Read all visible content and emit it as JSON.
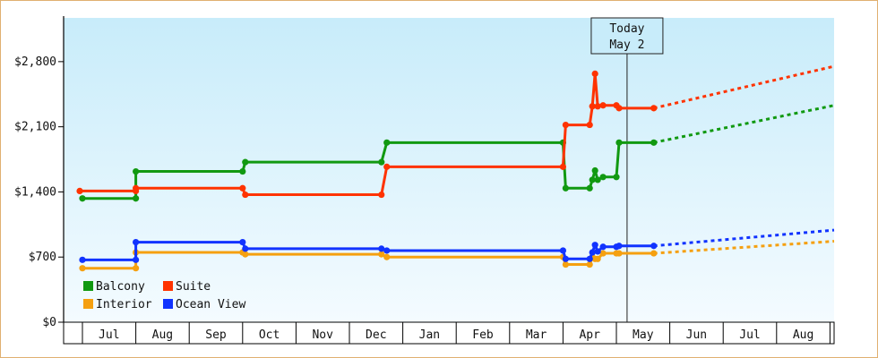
{
  "chart_data": {
    "type": "line",
    "y_tick_labels": [
      "$0",
      "$700",
      "$1,400",
      "$2,100",
      "$2,800"
    ],
    "y_ticks": [
      0,
      700,
      1400,
      2100,
      2800
    ],
    "ylim": [
      0,
      3270
    ],
    "x_month_labels": [
      "Jul",
      "Aug",
      "Sep",
      "Oct",
      "Nov",
      "Dec",
      "Jan",
      "Feb",
      "Mar",
      "Apr",
      "May",
      "Jun",
      "Jul",
      "Aug"
    ],
    "grid": false,
    "today_marker": {
      "line1": "Today",
      "line2": "May 2",
      "x_month_index": 10.2
    },
    "legend_position": "bottom-left",
    "series": [
      {
        "name": "Balcony",
        "color": "#119911",
        "points": [
          [
            0.0,
            1330
          ],
          [
            1.0,
            1330
          ],
          [
            1.0,
            1620
          ],
          [
            3.0,
            1620
          ],
          [
            3.05,
            1720
          ],
          [
            5.6,
            1720
          ],
          [
            5.7,
            1930
          ],
          [
            9.0,
            1930
          ],
          [
            9.05,
            1440
          ],
          [
            9.5,
            1440
          ],
          [
            9.55,
            1530
          ],
          [
            9.6,
            1630
          ],
          [
            9.65,
            1530
          ],
          [
            9.75,
            1560
          ],
          [
            10.0,
            1560
          ],
          [
            10.05,
            1930
          ],
          [
            10.7,
            1930
          ]
        ],
        "forecast_end": 2330
      },
      {
        "name": "Suite",
        "color": "#ff3300",
        "points": [
          [
            -0.05,
            1410
          ],
          [
            1.0,
            1410
          ],
          [
            1.0,
            1440
          ],
          [
            3.0,
            1440
          ],
          [
            3.05,
            1370
          ],
          [
            5.6,
            1370
          ],
          [
            5.7,
            1670
          ],
          [
            9.0,
            1670
          ],
          [
            9.05,
            2120
          ],
          [
            9.5,
            2120
          ],
          [
            9.55,
            2320
          ],
          [
            9.6,
            2670
          ],
          [
            9.65,
            2320
          ],
          [
            9.75,
            2330
          ],
          [
            10.0,
            2330
          ],
          [
            10.05,
            2300
          ],
          [
            10.7,
            2300
          ]
        ],
        "forecast_end": 2750
      },
      {
        "name": "Interior",
        "color": "#f5a010",
        "points": [
          [
            0.0,
            580
          ],
          [
            1.0,
            580
          ],
          [
            1.0,
            750
          ],
          [
            3.0,
            750
          ],
          [
            3.05,
            730
          ],
          [
            5.6,
            730
          ],
          [
            5.7,
            700
          ],
          [
            9.0,
            700
          ],
          [
            9.05,
            620
          ],
          [
            9.5,
            620
          ],
          [
            9.55,
            700
          ],
          [
            9.6,
            680
          ],
          [
            9.65,
            680
          ],
          [
            9.75,
            740
          ],
          [
            10.0,
            740
          ],
          [
            10.05,
            740
          ],
          [
            10.7,
            740
          ]
        ],
        "forecast_end": 870
      },
      {
        "name": "Ocean View",
        "color": "#1133ff",
        "points": [
          [
            0.0,
            670
          ],
          [
            1.0,
            670
          ],
          [
            1.0,
            860
          ],
          [
            3.0,
            860
          ],
          [
            3.05,
            790
          ],
          [
            5.6,
            790
          ],
          [
            5.7,
            770
          ],
          [
            9.0,
            770
          ],
          [
            9.05,
            680
          ],
          [
            9.5,
            680
          ],
          [
            9.55,
            750
          ],
          [
            9.6,
            830
          ],
          [
            9.65,
            760
          ],
          [
            9.75,
            810
          ],
          [
            10.0,
            810
          ],
          [
            10.05,
            820
          ],
          [
            10.7,
            820
          ]
        ],
        "forecast_end": 990
      }
    ]
  }
}
